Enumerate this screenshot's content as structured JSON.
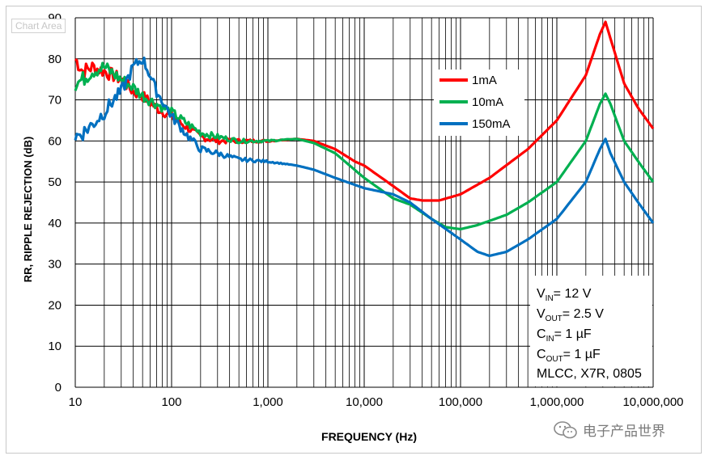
{
  "chart_data": {
    "type": "line",
    "title": "",
    "tooltip": "Chart Area",
    "xlabel": "FREQUENCY (Hz)",
    "ylabel": "RR, RIPPLE  REJECTION (dB)",
    "x_scale": "log",
    "xlim": [
      10,
      10000000
    ],
    "ylim": [
      0,
      90
    ],
    "x_ticks": [
      "10",
      "100",
      "1,000",
      "10,000",
      "100,000",
      "1,000,000",
      "10,000,000"
    ],
    "y_ticks": [
      "0",
      "10",
      "20",
      "30",
      "40",
      "50",
      "60",
      "70",
      "80",
      "90"
    ],
    "grid": true,
    "legend_position": "upper-right",
    "series": [
      {
        "name": "1mA",
        "color": "#ff0000",
        "points": [
          [
            10,
            80
          ],
          [
            12,
            77
          ],
          [
            15,
            78
          ],
          [
            20,
            77
          ],
          [
            30,
            75
          ],
          [
            40,
            72
          ],
          [
            50,
            71
          ],
          [
            70,
            68
          ],
          [
            100,
            66
          ],
          [
            150,
            63
          ],
          [
            200,
            61
          ],
          [
            300,
            60
          ],
          [
            500,
            60
          ],
          [
            1000,
            60
          ],
          [
            2000,
            60.5
          ],
          [
            3000,
            60
          ],
          [
            5000,
            58
          ],
          [
            8000,
            55
          ],
          [
            10000,
            54
          ],
          [
            20000,
            49
          ],
          [
            30000,
            46
          ],
          [
            40000,
            45.5
          ],
          [
            60000,
            45.5
          ],
          [
            100000,
            47
          ],
          [
            200000,
            51
          ],
          [
            500000,
            58
          ],
          [
            1000000,
            65
          ],
          [
            2000000,
            76
          ],
          [
            2800000,
            86
          ],
          [
            3200000,
            89
          ],
          [
            3600000,
            85
          ],
          [
            5000000,
            74
          ],
          [
            7000000,
            68
          ],
          [
            10000000,
            63
          ]
        ]
      },
      {
        "name": "10mA",
        "color": "#00b050",
        "points": [
          [
            10,
            74
          ],
          [
            12,
            75
          ],
          [
            15,
            77
          ],
          [
            20,
            78
          ],
          [
            30,
            75
          ],
          [
            40,
            73
          ],
          [
            50,
            71
          ],
          [
            70,
            69
          ],
          [
            100,
            67
          ],
          [
            150,
            64
          ],
          [
            200,
            62
          ],
          [
            300,
            61
          ],
          [
            500,
            60
          ],
          [
            1000,
            60
          ],
          [
            2000,
            60.5
          ],
          [
            3000,
            59.5
          ],
          [
            5000,
            57
          ],
          [
            10000,
            51
          ],
          [
            20000,
            46
          ],
          [
            30000,
            44.5
          ],
          [
            50000,
            41
          ],
          [
            70000,
            39
          ],
          [
            100000,
            38.5
          ],
          [
            150000,
            39.5
          ],
          [
            300000,
            42
          ],
          [
            500000,
            45
          ],
          [
            1000000,
            50
          ],
          [
            2000000,
            60
          ],
          [
            2800000,
            69
          ],
          [
            3200000,
            71.5
          ],
          [
            3600000,
            69
          ],
          [
            5000000,
            60
          ],
          [
            7000000,
            55
          ],
          [
            10000000,
            50
          ]
        ]
      },
      {
        "name": "150mA",
        "color": "#0070c0",
        "points": [
          [
            10,
            61
          ],
          [
            12,
            62
          ],
          [
            15,
            64
          ],
          [
            20,
            67
          ],
          [
            25,
            70
          ],
          [
            30,
            72
          ],
          [
            40,
            78
          ],
          [
            50,
            80
          ],
          [
            60,
            76
          ],
          [
            70,
            72
          ],
          [
            100,
            66
          ],
          [
            150,
            61
          ],
          [
            200,
            58
          ],
          [
            300,
            57
          ],
          [
            500,
            55.5
          ],
          [
            1000,
            55
          ],
          [
            2000,
            54
          ],
          [
            3000,
            53
          ],
          [
            5000,
            51
          ],
          [
            10000,
            48.5
          ],
          [
            20000,
            47
          ],
          [
            30000,
            45
          ],
          [
            50000,
            41
          ],
          [
            100000,
            36
          ],
          [
            150000,
            33
          ],
          [
            200000,
            32
          ],
          [
            300000,
            33
          ],
          [
            500000,
            36
          ],
          [
            1000000,
            41
          ],
          [
            2000000,
            50
          ],
          [
            2800000,
            58
          ],
          [
            3200000,
            60.5
          ],
          [
            3600000,
            57
          ],
          [
            5000000,
            50
          ],
          [
            7000000,
            45
          ],
          [
            10000000,
            40
          ]
        ]
      }
    ],
    "annotation_lines": [
      {
        "main": "V",
        "sub": "IN",
        "rest": "= 12 V"
      },
      {
        "main": "V",
        "sub": "OUT",
        "rest": "= 2.5 V"
      },
      {
        "main": "C",
        "sub": "IN",
        "rest": "= 1 µF"
      },
      {
        "main": "C",
        "sub": "OUT",
        "rest": "= 1 µF"
      },
      {
        "main": "MLCC, X7R, 0805",
        "sub": "",
        "rest": ""
      }
    ]
  },
  "watermark": {
    "text": "电子产品世界",
    "icon": "wechat-icon"
  }
}
